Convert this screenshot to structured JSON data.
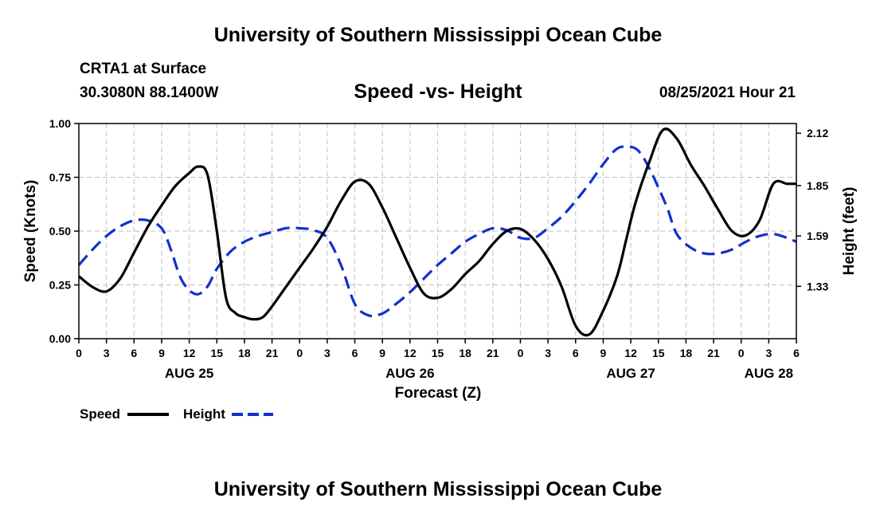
{
  "header": {
    "title": "University of Southern Mississippi Ocean Cube",
    "station": "CRTA1 at Surface",
    "coordinates": "30.3080N  88.1400W",
    "plot_title": "Speed -vs- Height",
    "datetime": "08/25/2021 Hour 21"
  },
  "footer": {
    "title": "University of Southern Mississippi Ocean Cube"
  },
  "chart_data": {
    "type": "line",
    "title": "Speed -vs- Height",
    "xlabel": "Forecast (Z)",
    "ylabel": "Speed (Knots)",
    "y2label": "Height (feet)",
    "x_range": [
      0,
      78
    ],
    "x_unit": "hours from AUG 25 00Z",
    "x_ticks": [
      0,
      3,
      6,
      9,
      12,
      15,
      18,
      21,
      24,
      27,
      30,
      33,
      36,
      39,
      42,
      45,
      48,
      51,
      54,
      57,
      60,
      63,
      66,
      69,
      72,
      75,
      78
    ],
    "x_tick_labels": [
      "0",
      "3",
      "6",
      "9",
      "12",
      "15",
      "18",
      "21",
      "0",
      "3",
      "6",
      "9",
      "12",
      "15",
      "18",
      "21",
      "0",
      "3",
      "6",
      "9",
      "12",
      "15",
      "18",
      "21",
      "0",
      "3",
      "6"
    ],
    "date_labels": [
      {
        "x": 12,
        "label": "AUG 25"
      },
      {
        "x": 36,
        "label": "AUG 26"
      },
      {
        "x": 60,
        "label": "AUG 27"
      },
      {
        "x": 75,
        "label": "AUG 28"
      }
    ],
    "ylim": [
      0,
      1
    ],
    "y_ticks": [
      0,
      0.25,
      0.5,
      0.75,
      1.0
    ],
    "y_tick_labels": [
      "0.00",
      "0.25",
      "0.50",
      "0.75",
      "1.00"
    ],
    "y2lim": [
      1.06,
      2.17
    ],
    "y2_ticks": [
      1.33,
      1.59,
      1.85,
      2.12
    ],
    "y2_tick_labels": [
      "1.33",
      "1.59",
      "1.85",
      "2.12"
    ],
    "grid": true,
    "legend": {
      "position": "bottom-left",
      "entries": [
        "Speed",
        "Height"
      ]
    },
    "series": [
      {
        "name": "Speed",
        "axis": "left",
        "color": "#000000",
        "dash": "solid",
        "x": [
          0,
          1.5,
          3,
          4.5,
          6,
          7.5,
          9,
          10.5,
          12,
          13,
          14,
          15,
          16,
          17,
          18,
          19,
          20,
          21,
          22.5,
          24,
          25.5,
          27,
          28.5,
          30,
          31.5,
          33,
          34.5,
          36,
          37.5,
          39,
          40.5,
          42,
          43.5,
          45,
          46.5,
          48,
          49.5,
          51,
          52.5,
          54,
          55.5,
          57,
          58.5,
          59.5,
          60.5,
          62,
          63.5,
          65,
          66.5,
          68,
          69.5,
          71,
          72.5,
          74,
          75.5,
          77,
          78
        ],
        "values": [
          0.29,
          0.24,
          0.22,
          0.28,
          0.4,
          0.52,
          0.62,
          0.71,
          0.77,
          0.8,
          0.76,
          0.5,
          0.19,
          0.12,
          0.1,
          0.09,
          0.1,
          0.15,
          0.24,
          0.33,
          0.42,
          0.52,
          0.64,
          0.73,
          0.72,
          0.61,
          0.47,
          0.33,
          0.21,
          0.19,
          0.23,
          0.3,
          0.36,
          0.44,
          0.5,
          0.51,
          0.46,
          0.37,
          0.24,
          0.06,
          0.02,
          0.13,
          0.29,
          0.46,
          0.63,
          0.82,
          0.97,
          0.93,
          0.81,
          0.71,
          0.6,
          0.5,
          0.48,
          0.55,
          0.72,
          0.72,
          0.72
        ]
      },
      {
        "name": "Height",
        "axis": "right",
        "color": "#1030d0",
        "dash": "dashed",
        "x": [
          0,
          1.5,
          3,
          4.5,
          6,
          7.5,
          9,
          10,
          11,
          12,
          13,
          14,
          15,
          16.5,
          18,
          19.5,
          21,
          22.5,
          24,
          25.5,
          27,
          28.5,
          30,
          31.5,
          33,
          34.5,
          36,
          37.5,
          39,
          40.5,
          42,
          43.5,
          45,
          46.5,
          48,
          49.5,
          51,
          52.5,
          54,
          55.5,
          57,
          58.5,
          60,
          61,
          62,
          63,
          64,
          65,
          66.5,
          68,
          69.5,
          71,
          72.5,
          74,
          75.5,
          77,
          78
        ],
        "values": [
          1.44,
          1.52,
          1.59,
          1.64,
          1.67,
          1.67,
          1.63,
          1.52,
          1.38,
          1.31,
          1.29,
          1.33,
          1.42,
          1.51,
          1.56,
          1.59,
          1.61,
          1.63,
          1.63,
          1.62,
          1.58,
          1.44,
          1.24,
          1.18,
          1.19,
          1.24,
          1.3,
          1.37,
          1.44,
          1.5,
          1.56,
          1.6,
          1.63,
          1.62,
          1.58,
          1.58,
          1.63,
          1.69,
          1.77,
          1.86,
          1.96,
          2.04,
          2.05,
          2.02,
          1.94,
          1.84,
          1.73,
          1.6,
          1.53,
          1.5,
          1.5,
          1.52,
          1.56,
          1.59,
          1.6,
          1.58,
          1.56
        ]
      }
    ]
  }
}
